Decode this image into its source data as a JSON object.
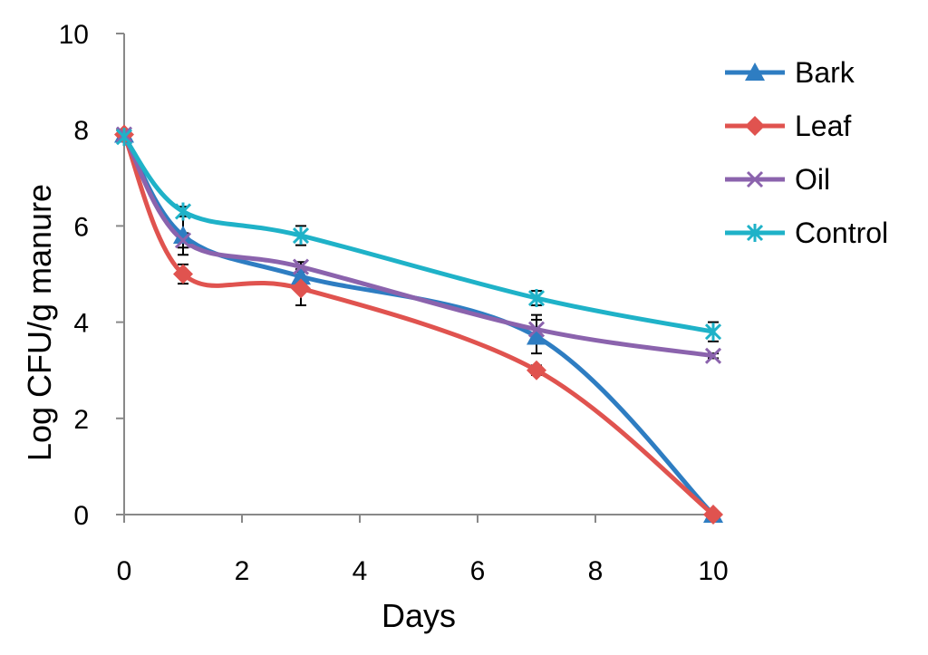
{
  "chart_data": {
    "type": "line",
    "title": "",
    "xlabel": "Days",
    "ylabel": "Log CFU/g manure",
    "xlim": [
      0,
      10
    ],
    "ylim": [
      0,
      10
    ],
    "x_ticks": [
      0,
      2,
      4,
      6,
      8,
      10
    ],
    "y_ticks": [
      0,
      2,
      4,
      6,
      8,
      10
    ],
    "grid": false,
    "legend_position": "top-right",
    "x": [
      0,
      1,
      3,
      7,
      10
    ],
    "series": [
      {
        "name": "Bark",
        "marker": "triangle",
        "color": "#2e7dc2",
        "values": [
          7.9,
          5.8,
          4.95,
          3.7,
          0.0
        ],
        "errors": [
          0.05,
          0.4,
          0.15,
          0.35,
          0.0
        ]
      },
      {
        "name": "Leaf",
        "marker": "diamond",
        "color": "#e0534f",
        "values": [
          7.9,
          5.0,
          4.7,
          3.0,
          0.0
        ],
        "errors": [
          0.05,
          0.2,
          0.35,
          0.1,
          0.0
        ]
      },
      {
        "name": "Oil",
        "marker": "x",
        "color": "#8b63ad",
        "values": [
          7.9,
          5.7,
          5.15,
          3.85,
          3.3
        ],
        "errors": [
          0.05,
          0.15,
          0.1,
          0.3,
          0.05
        ]
      },
      {
        "name": "Control",
        "marker": "star",
        "color": "#1fb2c8",
        "values": [
          7.85,
          6.3,
          5.8,
          4.5,
          3.8
        ],
        "errors": [
          0.05,
          0.1,
          0.2,
          0.15,
          0.2
        ]
      }
    ]
  }
}
